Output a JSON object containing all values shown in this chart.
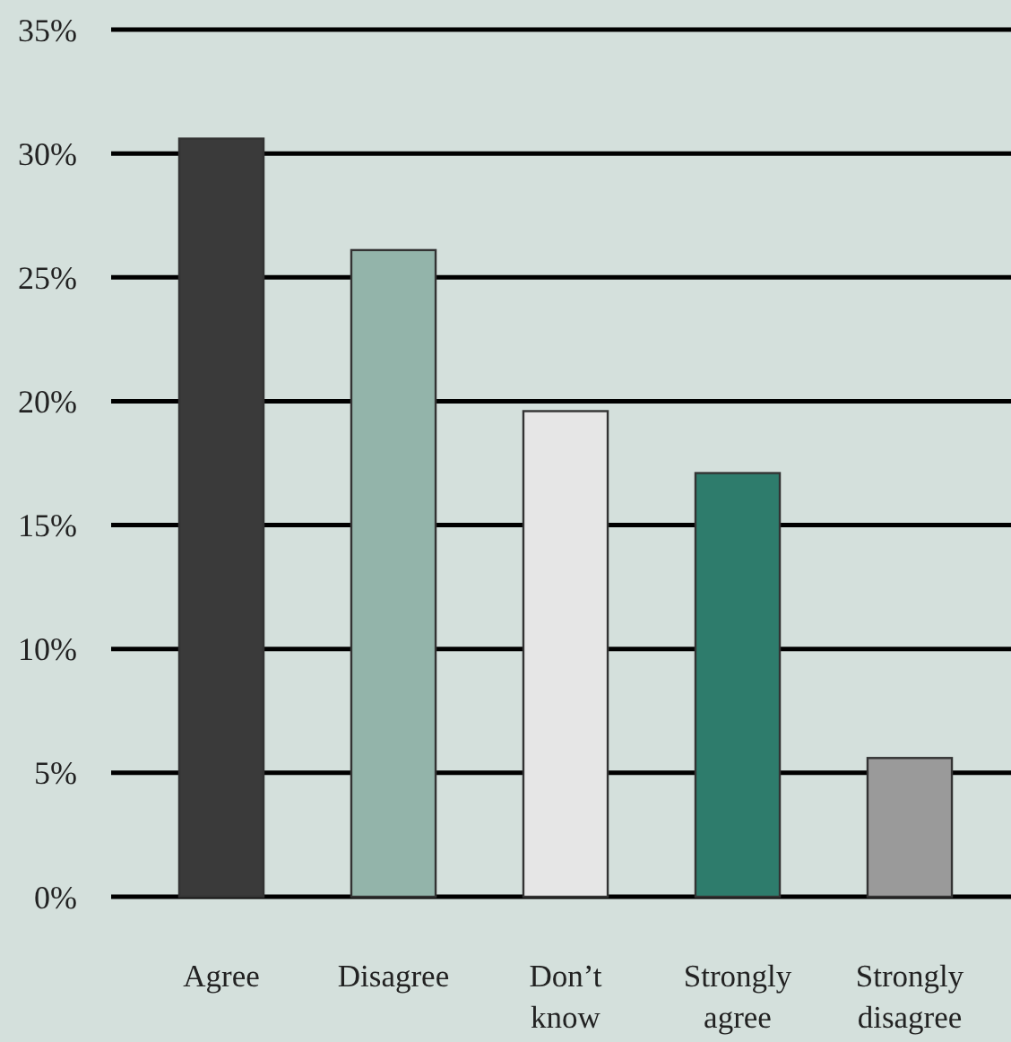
{
  "chart_data": {
    "type": "bar",
    "categories": [
      "Agree",
      "Disagree",
      "Don’t know",
      "Strongly agree",
      "Strongly disagree"
    ],
    "values": [
      30.6,
      26.1,
      19.6,
      17.1,
      5.6
    ],
    "colors": [
      "#3a3a3a",
      "#93b4aa",
      "#e6e6e6",
      "#2e7c6c",
      "#9a9a9a"
    ],
    "ylim": [
      0,
      35
    ],
    "yticks": [
      {
        "value": 0,
        "label": "0%"
      },
      {
        "value": 5,
        "label": "5%"
      },
      {
        "value": 10,
        "label": "10%"
      },
      {
        "value": 15,
        "label": "15%"
      },
      {
        "value": 20,
        "label": "20%"
      },
      {
        "value": 25,
        "label": "25%"
      },
      {
        "value": 30,
        "label": "30%"
      },
      {
        "value": 35,
        "label": "35%"
      }
    ],
    "grid": "y"
  }
}
